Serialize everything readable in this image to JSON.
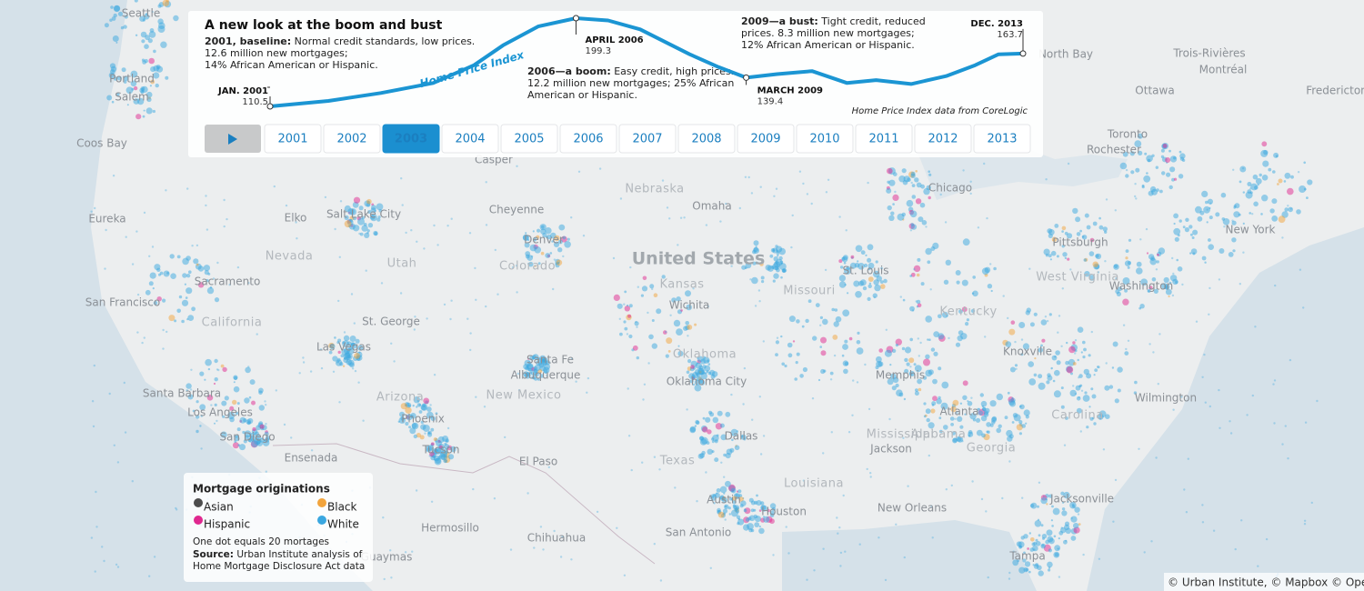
{
  "panel": {
    "title": "A new look at the boom and bust",
    "notes": [
      {
        "lead": "2001, baseline:",
        "lines": [
          " Normal credit standards, low prices.",
          "12.6 million new mortgages;",
          "14% African American or Hispanic."
        ]
      },
      {
        "lead": "2006—a boom:",
        "lines": [
          " Easy credit, high prices.",
          "12.2 million new mortgages; 25%  African",
          "American or Hispanic."
        ]
      },
      {
        "lead": "2009—a bust:",
        "lines": [
          " Tight credit, reduced",
          "prices. 8.3 million new mortgages;",
          "12% African American or Hispanic."
        ]
      }
    ],
    "source_note": "Home Price Index data from CoreLogic",
    "years": [
      "2001",
      "2002",
      "2003",
      "2004",
      "2005",
      "2006",
      "2007",
      "2008",
      "2009",
      "2010",
      "2011",
      "2012",
      "2013"
    ],
    "active_year": "2003"
  },
  "chart_data": {
    "type": "line",
    "label": "Home Price Index",
    "color": "#1b95d3",
    "x": [
      2001.0,
      2002.0,
      2002.9,
      2003.8,
      2004.5,
      2005.0,
      2005.6,
      2006.25,
      2006.8,
      2007.35,
      2008.2,
      2008.7,
      2009.17,
      2009.7,
      2010.3,
      2010.9,
      2011.4,
      2012.0,
      2012.6,
      2013.1,
      2013.5,
      2013.92
    ],
    "values": [
      110.5,
      116,
      124,
      134,
      152,
      172,
      191,
      199.3,
      197,
      188,
      163,
      150,
      139.4,
      143,
      146,
      134,
      137,
      133,
      141,
      152,
      163,
      163.7
    ],
    "annotations": [
      {
        "label": "JAN. 2001",
        "value": 110.5,
        "x": 2001.0
      },
      {
        "label": "APRIL 2006",
        "value": 199.3,
        "x": 2006.25
      },
      {
        "label": "MARCH 2009",
        "value": 139.4,
        "x": 2009.17
      },
      {
        "label": "DEC. 2013",
        "value": 163.7,
        "x": 2013.92
      }
    ]
  },
  "legend": {
    "title": "Mortgage originations",
    "items": [
      {
        "name": "Asian",
        "color": "#4d4d4d"
      },
      {
        "name": "Black",
        "color": "#f2a43c"
      },
      {
        "name": "Hispanic",
        "color": "#e0288f"
      },
      {
        "name": "White",
        "color": "#3aa7e0"
      }
    ],
    "dot_note": "One dot equals 20 mortages",
    "source_lead": "Source:",
    "source_lines": [
      " Urban Institute analysis of",
      "Home Mortgage Disclosure Act data"
    ]
  },
  "map_labels": {
    "country": "United States",
    "places": [
      "Seattle",
      "Portland",
      "Salem",
      "Coos Bay",
      "Eureka",
      "San Francisco",
      "Sacramento",
      "California",
      "Nevada",
      "Elko",
      "Salt Lake City",
      "Utah",
      "St. George",
      "Las Vegas",
      "Santa Barbara",
      "Los Angeles",
      "San Diego",
      "Ensenada",
      "Arizona",
      "Phoenix",
      "Tucson",
      "Hermosillo",
      "Guaymas",
      "Chihuahua",
      "El Paso",
      "Santa Fe",
      "Albuquerque",
      "New Mexico",
      "Colorado",
      "Denver",
      "Cheyenne",
      "Casper",
      "Nebraska",
      "Omaha",
      "Kansas",
      "Wichita",
      "Oklahoma",
      "Oklahoma City",
      "Texas",
      "Dallas",
      "Austin",
      "San Antonio",
      "Houston",
      "Louisiana",
      "New Orleans",
      "Mississippi",
      "Alabama",
      "Jackson",
      "Memphis",
      "Atlanta",
      "Georgia",
      "Jacksonville",
      "Tampa",
      "Wilmington",
      "Carolina",
      "Knoxville",
      "Kentucky",
      "Missouri",
      "St. Louis",
      "Chicago",
      "Pittsburgh",
      "West Virginia",
      "Washington",
      "New York",
      "Toronto",
      "Rochester",
      "Ottawa",
      "Montréal",
      "Trois-Rivières",
      "Fredericton",
      "North Bay"
    ]
  },
  "attribution": "© Urban Institute, © Mapbox © OpenS"
}
